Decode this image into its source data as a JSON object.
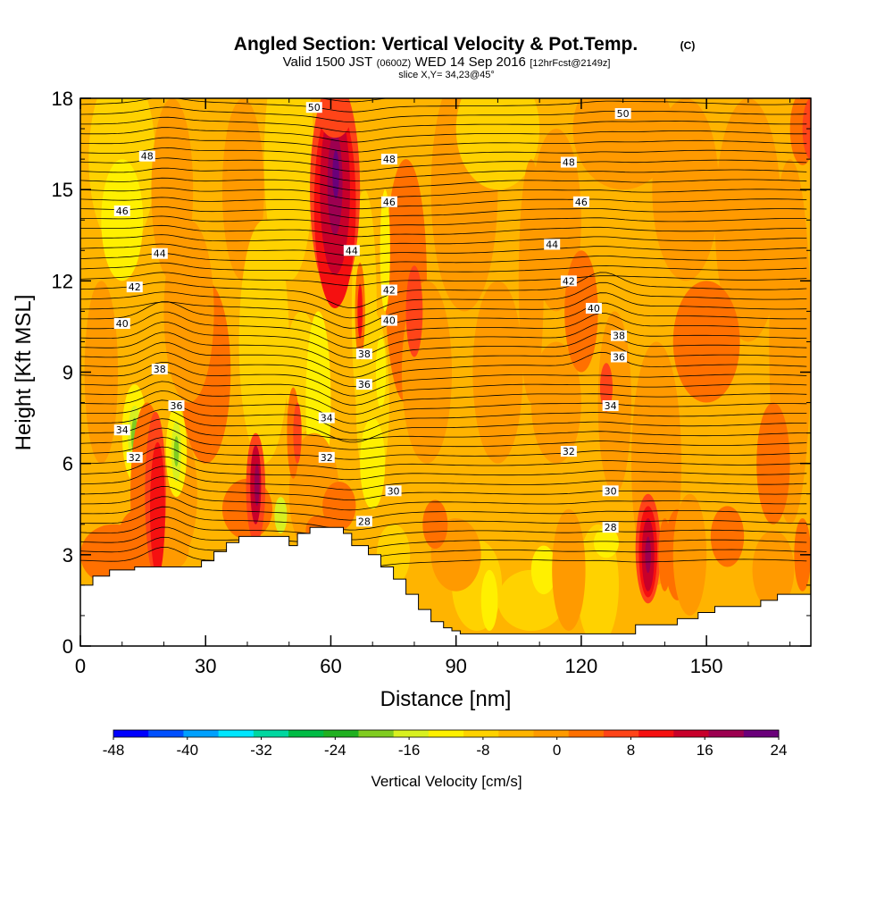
{
  "title": {
    "main": "Angled Section: Vertical Velocity & Pot.Temp.",
    "main_unit": "(C)",
    "valid_a": "Valid 1500 JST",
    "valid_b": "(0600Z)",
    "valid_c": "WED 14 Sep 2016",
    "valid_d": "[12hrFcst@2149z]",
    "slice": "slice X,Y= 34,23@45°"
  },
  "chart_data": {
    "type": "heatmap",
    "xlabel": "Distance [nm]",
    "ylabel": "Height [Kft MSL]",
    "xlim": [
      0,
      175
    ],
    "ylim": [
      0,
      18
    ],
    "x_ticks": [
      {
        "v": 0,
        "label": "0"
      },
      {
        "v": 30,
        "label": "30"
      },
      {
        "v": 60,
        "label": "60"
      },
      {
        "v": 90,
        "label": "90"
      },
      {
        "v": 120,
        "label": "120"
      },
      {
        "v": 150,
        "label": "150"
      }
    ],
    "y_ticks": [
      {
        "v": 0,
        "label": "0"
      },
      {
        "v": 3,
        "label": "3"
      },
      {
        "v": 6,
        "label": "6"
      },
      {
        "v": 9,
        "label": "9"
      },
      {
        "v": 12,
        "label": "12"
      },
      {
        "v": 15,
        "label": "15"
      },
      {
        "v": 18,
        "label": "18"
      }
    ],
    "colorbar": {
      "title": "Vertical Velocity [cm/s]",
      "bounds": [
        -48,
        24
      ],
      "colors": [
        "#0000ff",
        "#0050ff",
        "#00a0ff",
        "#00e6ff",
        "#00d7a0",
        "#00bb44",
        "#20b020",
        "#80cc20",
        "#d8f020",
        "#fff000",
        "#ffd200",
        "#ffb400",
        "#ff9a00",
        "#ff7000",
        "#ff4418",
        "#f51010",
        "#c8002a",
        "#9c0050",
        "#6a007a"
      ],
      "tick_labels": [
        {
          "v": -48,
          "label": "-48"
        },
        {
          "v": -40,
          "label": "-40"
        },
        {
          "v": -32,
          "label": "-32"
        },
        {
          "v": -24,
          "label": "-24"
        },
        {
          "v": -16,
          "label": "-16"
        },
        {
          "v": -8,
          "label": "-8"
        },
        {
          "v": 0,
          "label": "0"
        },
        {
          "v": 8,
          "label": "8"
        },
        {
          "v": 16,
          "label": "16"
        },
        {
          "v": 24,
          "label": "24"
        }
      ]
    },
    "terrain_kft": [
      [
        0,
        2.0
      ],
      [
        3,
        2.3
      ],
      [
        7,
        2.5
      ],
      [
        13,
        2.6
      ],
      [
        20,
        2.6
      ],
      [
        29,
        2.8
      ],
      [
        32,
        3.1
      ],
      [
        35,
        3.4
      ],
      [
        38,
        3.6
      ],
      [
        48,
        3.6
      ],
      [
        50,
        3.3
      ],
      [
        52,
        3.7
      ],
      [
        55,
        3.9
      ],
      [
        61,
        3.9
      ],
      [
        63,
        3.7
      ],
      [
        65,
        3.3
      ],
      [
        69,
        3.0
      ],
      [
        72,
        2.6
      ],
      [
        75,
        2.2
      ],
      [
        78,
        1.7
      ],
      [
        81,
        1.2
      ],
      [
        84,
        0.8
      ],
      [
        87,
        0.6
      ],
      [
        89,
        0.5
      ],
      [
        91,
        0.4
      ],
      [
        130,
        0.4
      ],
      [
        133,
        0.7
      ],
      [
        140,
        0.7
      ],
      [
        143,
        0.9
      ],
      [
        148,
        1.1
      ],
      [
        152,
        1.3
      ],
      [
        160,
        1.3
      ],
      [
        163,
        1.5
      ],
      [
        167,
        1.7
      ],
      [
        175,
        1.7
      ]
    ],
    "contour_labels": [
      {
        "x": 56,
        "y": 17.7,
        "label": "50"
      },
      {
        "x": 130,
        "y": 17.5,
        "label": "50"
      },
      {
        "x": 16,
        "y": 16.1,
        "label": "48"
      },
      {
        "x": 74,
        "y": 16.0,
        "label": "48"
      },
      {
        "x": 117,
        "y": 15.9,
        "label": "48"
      },
      {
        "x": 10,
        "y": 14.3,
        "label": "46"
      },
      {
        "x": 74,
        "y": 14.6,
        "label": "46"
      },
      {
        "x": 120,
        "y": 14.6,
        "label": "46"
      },
      {
        "x": 19,
        "y": 12.9,
        "label": "44"
      },
      {
        "x": 65,
        "y": 13.0,
        "label": "44"
      },
      {
        "x": 113,
        "y": 13.2,
        "label": "44"
      },
      {
        "x": 13,
        "y": 11.8,
        "label": "42"
      },
      {
        "x": 74,
        "y": 11.7,
        "label": "42"
      },
      {
        "x": 117,
        "y": 12.0,
        "label": "42"
      },
      {
        "x": 10,
        "y": 10.6,
        "label": "40"
      },
      {
        "x": 74,
        "y": 10.7,
        "label": "40"
      },
      {
        "x": 123,
        "y": 11.1,
        "label": "40"
      },
      {
        "x": 19,
        "y": 9.1,
        "label": "38"
      },
      {
        "x": 68,
        "y": 9.6,
        "label": "38"
      },
      {
        "x": 129,
        "y": 10.2,
        "label": "38"
      },
      {
        "x": 23,
        "y": 7.9,
        "label": "36"
      },
      {
        "x": 68,
        "y": 8.6,
        "label": "36"
      },
      {
        "x": 129,
        "y": 9.5,
        "label": "36"
      },
      {
        "x": 10,
        "y": 7.1,
        "label": "34"
      },
      {
        "x": 59,
        "y": 7.5,
        "label": "34"
      },
      {
        "x": 127,
        "y": 7.9,
        "label": "34"
      },
      {
        "x": 13,
        "y": 6.2,
        "label": "32"
      },
      {
        "x": 59,
        "y": 6.2,
        "label": "32"
      },
      {
        "x": 117,
        "y": 6.4,
        "label": "32"
      },
      {
        "x": 75,
        "y": 5.1,
        "label": "30"
      },
      {
        "x": 127,
        "y": 5.1,
        "label": "30"
      },
      {
        "x": 68,
        "y": 4.1,
        "label": "28"
      },
      {
        "x": 127,
        "y": 3.9,
        "label": "28"
      }
    ]
  }
}
